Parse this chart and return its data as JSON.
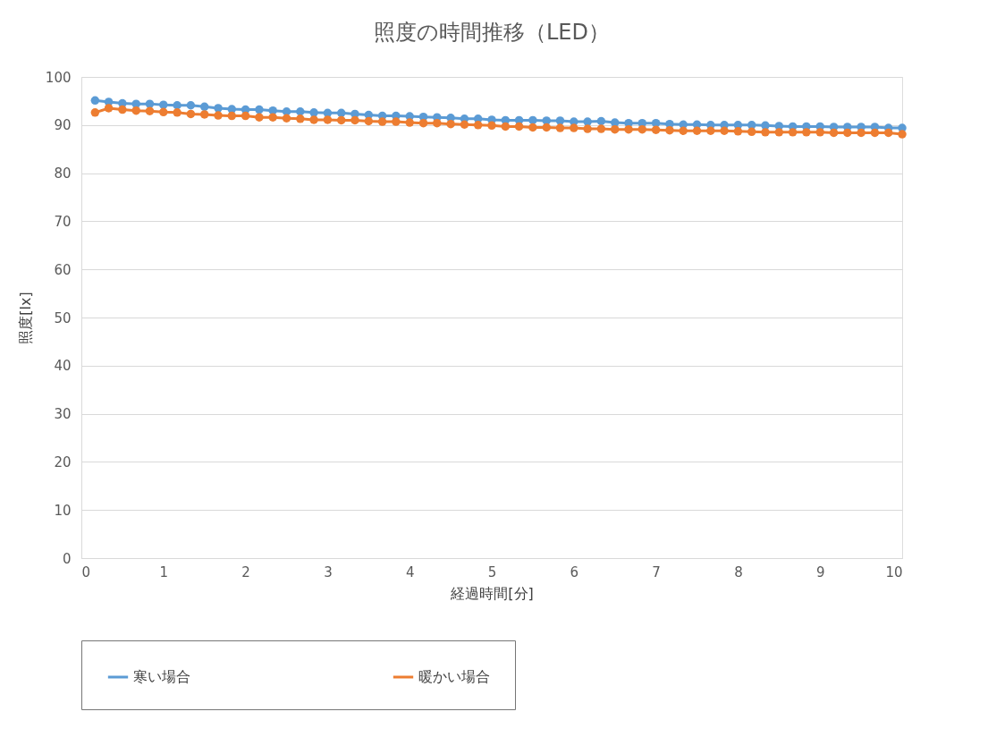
{
  "chart_data": {
    "type": "line",
    "title": "照度の時間推移（LED）",
    "xlabel": "経過時間[分]",
    "ylabel": "照度[lx]",
    "x": [
      0.167,
      0.333,
      0.5,
      0.667,
      0.833,
      1.0,
      1.167,
      1.333,
      1.5,
      1.667,
      1.833,
      2.0,
      2.167,
      2.333,
      2.5,
      2.667,
      2.833,
      3.0,
      3.167,
      3.333,
      3.5,
      3.667,
      3.833,
      4.0,
      4.167,
      4.333,
      4.5,
      4.667,
      4.833,
      5.0,
      5.167,
      5.333,
      5.5,
      5.667,
      5.833,
      6.0,
      6.167,
      6.333,
      6.5,
      6.667,
      6.833,
      7.0,
      7.167,
      7.333,
      7.5,
      7.667,
      7.833,
      8.0,
      8.167,
      8.333,
      8.5,
      8.667,
      8.833,
      9.0,
      9.167,
      9.333,
      9.5,
      9.667,
      9.833,
      10.0
    ],
    "series": [
      {
        "name": "寒い場合",
        "color": "#5b9bd5",
        "values": [
          95.1,
          94.8,
          94.5,
          94.4,
          94.4,
          94.2,
          94.1,
          94.1,
          93.8,
          93.5,
          93.3,
          93.2,
          93.2,
          93.0,
          92.8,
          92.8,
          92.6,
          92.5,
          92.5,
          92.3,
          92.1,
          91.9,
          91.9,
          91.8,
          91.7,
          91.6,
          91.5,
          91.3,
          91.3,
          91.1,
          91.0,
          91.0,
          91.0,
          90.9,
          90.9,
          90.7,
          90.7,
          90.8,
          90.5,
          90.4,
          90.4,
          90.4,
          90.2,
          90.1,
          90.1,
          90.0,
          90.0,
          90.0,
          90.0,
          89.9,
          89.8,
          89.7,
          89.7,
          89.7,
          89.6,
          89.6,
          89.6,
          89.6,
          89.4,
          89.4
        ]
      },
      {
        "name": "暖かい場合",
        "color": "#ed7d31",
        "values": [
          92.6,
          93.5,
          93.2,
          93.0,
          92.9,
          92.7,
          92.6,
          92.3,
          92.2,
          92.0,
          91.9,
          91.9,
          91.6,
          91.6,
          91.4,
          91.3,
          91.1,
          91.1,
          91.0,
          91.0,
          90.8,
          90.7,
          90.7,
          90.5,
          90.4,
          90.4,
          90.2,
          90.1,
          90.0,
          89.9,
          89.7,
          89.7,
          89.5,
          89.5,
          89.4,
          89.4,
          89.2,
          89.2,
          89.1,
          89.1,
          89.1,
          89.0,
          88.9,
          88.8,
          88.8,
          88.8,
          88.8,
          88.7,
          88.6,
          88.5,
          88.5,
          88.5,
          88.5,
          88.5,
          88.4,
          88.4,
          88.4,
          88.4,
          88.4,
          88.1
        ]
      }
    ],
    "xlim": [
      0,
      10
    ],
    "xticks": [
      0,
      1,
      2,
      3,
      4,
      5,
      6,
      7,
      8,
      9,
      10
    ],
    "ylim": [
      0,
      100
    ],
    "yticks": [
      0,
      10,
      20,
      30,
      40,
      50,
      60,
      70,
      80,
      90,
      100
    ],
    "grid": "y",
    "legend": "bottom",
    "marker": "circle",
    "line_style": "solid"
  }
}
